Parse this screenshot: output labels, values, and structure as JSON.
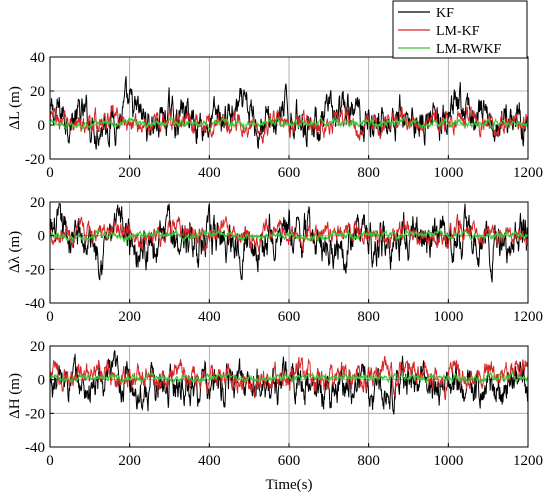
{
  "figure": {
    "xlabel": "Time(s)",
    "legend": {
      "placement": "top-right",
      "entries": [
        {
          "label": "KF",
          "color": "#000000"
        },
        {
          "label": "LM-KF",
          "color": "#d62728"
        },
        {
          "label": "LM-RWKF",
          "color": "#33cc33"
        }
      ]
    }
  },
  "chart_data": [
    {
      "type": "line",
      "ylabel": "ΔL (m)",
      "ylabel_symbol": "L",
      "xlim": [
        0,
        1200
      ],
      "ylim": [
        -20,
        40
      ],
      "xticks": [
        0,
        200,
        400,
        600,
        800,
        1000,
        1200
      ],
      "yticks": [
        -20,
        0,
        20,
        40
      ],
      "grid": true,
      "series": [
        {
          "name": "KF",
          "color": "#000000",
          "amplitude": 9,
          "mean": 4
        },
        {
          "name": "LM-KF",
          "color": "#d62728",
          "amplitude": 5,
          "mean": 1
        },
        {
          "name": "LM-RWKF",
          "color": "#33cc33",
          "amplitude": 1.5,
          "mean": 1
        }
      ]
    },
    {
      "type": "line",
      "ylabel": "Δλ (m)",
      "ylabel_symbol": "λ",
      "xlim": [
        0,
        1200
      ],
      "ylim": [
        -40,
        20
      ],
      "xticks": [
        0,
        200,
        400,
        600,
        800,
        1000,
        1200
      ],
      "yticks": [
        -40,
        -20,
        0,
        20
      ],
      "grid": true,
      "series": [
        {
          "name": "KF",
          "color": "#000000",
          "amplitude": 10,
          "mean": -2
        },
        {
          "name": "LM-KF",
          "color": "#d62728",
          "amplitude": 5,
          "mean": 1
        },
        {
          "name": "LM-RWKF",
          "color": "#33cc33",
          "amplitude": 1.5,
          "mean": 0
        }
      ]
    },
    {
      "type": "line",
      "ylabel": "ΔH (m)",
      "ylabel_symbol": "H",
      "xlim": [
        0,
        1200
      ],
      "ylim": [
        -40,
        20
      ],
      "xticks": [
        0,
        200,
        400,
        600,
        800,
        1000,
        1200
      ],
      "yticks": [
        -40,
        -20,
        0,
        20
      ],
      "grid": true,
      "series": [
        {
          "name": "KF",
          "color": "#000000",
          "amplitude": 9,
          "mean": -3
        },
        {
          "name": "LM-KF",
          "color": "#d62728",
          "amplitude": 6,
          "mean": 2
        },
        {
          "name": "LM-RWKF",
          "color": "#33cc33",
          "amplitude": 1.5,
          "mean": 1
        }
      ]
    }
  ]
}
